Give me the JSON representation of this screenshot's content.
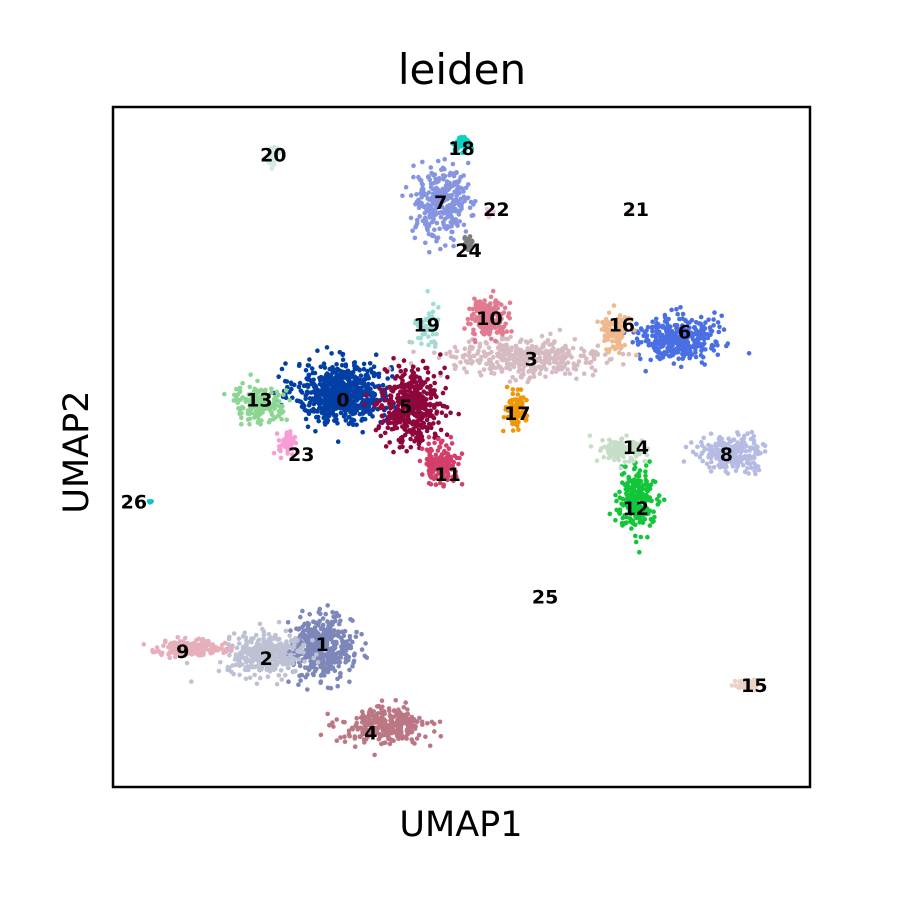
{
  "chart_data": {
    "type": "scatter",
    "title": "leiden",
    "xlabel": "UMAP1",
    "ylabel": "UMAP2",
    "xlim": [
      0,
      100
    ],
    "ylim": [
      0,
      100
    ],
    "grid": false,
    "ticks": false,
    "legend": "on data",
    "clusters": [
      {
        "name": "0",
        "color": "#023fa5",
        "center": [
          33,
          58
        ],
        "spread": [
          6.2,
          4.0
        ],
        "n": 700,
        "label_at": [
          33,
          57
        ]
      },
      {
        "name": "1",
        "color": "#7d87b9",
        "center": [
          30,
          20.5
        ],
        "spread": [
          4.0,
          4.0
        ],
        "n": 460,
        "label_at": [
          30,
          21
        ]
      },
      {
        "name": "2",
        "color": "#bec1d4",
        "center": [
          22,
          19.5
        ],
        "spread": [
          5.0,
          2.6
        ],
        "n": 360,
        "label_at": [
          22,
          19
        ]
      },
      {
        "name": "3",
        "color": "#d6bcc0",
        "center": [
          59,
          63
        ],
        "spread": [
          11.0,
          2.8
        ],
        "n": 380,
        "label_at": [
          60,
          63
        ]
      },
      {
        "name": "4",
        "color": "#bb7784",
        "center": [
          39,
          9
        ],
        "spread": [
          5.5,
          2.4
        ],
        "n": 300,
        "label_at": [
          37,
          8
        ]
      },
      {
        "name": "5",
        "color": "#8e063b",
        "center": [
          43,
          56
        ],
        "spread": [
          3.8,
          5.0
        ],
        "n": 420,
        "label_at": [
          42,
          56
        ]
      },
      {
        "name": "6",
        "color": "#4a6fe3",
        "center": [
          81,
          66
        ],
        "spread": [
          5.0,
          3.0
        ],
        "n": 360,
        "label_at": [
          82,
          67
        ]
      },
      {
        "name": "7",
        "color": "#8595e1",
        "center": [
          47,
          86
        ],
        "spread": [
          3.6,
          4.8
        ],
        "n": 300,
        "label_at": [
          47,
          86
        ]
      },
      {
        "name": "8",
        "color": "#b5bbe3",
        "center": [
          89,
          49
        ],
        "spread": [
          4.4,
          2.2
        ],
        "n": 240,
        "label_at": [
          88,
          49
        ]
      },
      {
        "name": "9",
        "color": "#e6afb9",
        "center": [
          11,
          20.5
        ],
        "spread": [
          4.2,
          1.0
        ],
        "n": 200,
        "label_at": [
          10,
          20
        ]
      },
      {
        "name": "10",
        "color": "#e07b91",
        "center": [
          54,
          69
        ],
        "spread": [
          2.4,
          2.4
        ],
        "n": 200,
        "label_at": [
          54,
          69
        ]
      },
      {
        "name": "11",
        "color": "#d33f6a",
        "center": [
          47,
          47.5
        ],
        "spread": [
          2.4,
          2.6
        ],
        "n": 170,
        "label_at": [
          48,
          46
        ]
      },
      {
        "name": "12",
        "color": "#11c638",
        "center": [
          75,
          42
        ],
        "spread": [
          2.4,
          4.0
        ],
        "n": 220,
        "label_at": [
          75,
          41
        ]
      },
      {
        "name": "13",
        "color": "#8dd593",
        "center": [
          21,
          56.5
        ],
        "spread": [
          3.4,
          2.4
        ],
        "n": 180,
        "label_at": [
          21,
          57
        ]
      },
      {
        "name": "14",
        "color": "#c6dec7",
        "center": [
          73,
          49.5
        ],
        "spread": [
          2.8,
          1.6
        ],
        "n": 120,
        "label_at": [
          75,
          50
        ]
      },
      {
        "name": "15",
        "color": "#ead3c6",
        "center": [
          91,
          15
        ],
        "spread": [
          1.6,
          0.7
        ],
        "n": 60,
        "label_at": [
          92,
          15
        ]
      },
      {
        "name": "16",
        "color": "#f0b98d",
        "center": [
          72,
          67
        ],
        "spread": [
          1.8,
          2.4
        ],
        "n": 110,
        "label_at": [
          73,
          68
        ]
      },
      {
        "name": "17",
        "color": "#ef9708",
        "center": [
          58,
          55.5
        ],
        "spread": [
          1.4,
          2.4
        ],
        "n": 90,
        "label_at": [
          58,
          55
        ]
      },
      {
        "name": "18",
        "color": "#0fcfc0",
        "center": [
          50,
          94.5
        ],
        "spread": [
          1.2,
          1.2
        ],
        "n": 45,
        "label_at": [
          50,
          94
        ]
      },
      {
        "name": "19",
        "color": "#9cded6",
        "center": [
          45,
          68
        ],
        "spread": [
          1.6,
          3.0
        ],
        "n": 50,
        "label_at": [
          45,
          68
        ]
      },
      {
        "name": "20",
        "color": "#d5eae7",
        "center": [
          23,
          92.5
        ],
        "spread": [
          0.7,
          1.4
        ],
        "n": 30,
        "label_at": [
          23,
          93
        ]
      },
      {
        "name": "21",
        "color": "#f3e1eb",
        "center": [
          74,
          84.5
        ],
        "spread": [
          0.3,
          0.4
        ],
        "n": 6,
        "label_at": [
          75,
          85
        ]
      },
      {
        "name": "22",
        "color": "#f6c4e1",
        "center": [
          54,
          84.5
        ],
        "spread": [
          0.5,
          0.6
        ],
        "n": 10,
        "label_at": [
          55,
          85
        ]
      },
      {
        "name": "23",
        "color": "#f79cd4",
        "center": [
          25,
          50.5
        ],
        "spread": [
          1.3,
          1.5
        ],
        "n": 45,
        "label_at": [
          27,
          49
        ]
      },
      {
        "name": "24",
        "color": "#7f7f7f",
        "center": [
          51,
          80
        ],
        "spread": [
          0.6,
          1.2
        ],
        "n": 25,
        "label_at": [
          51,
          79
        ]
      },
      {
        "name": "25",
        "color": "#ffffff",
        "center": [
          62,
          28
        ],
        "spread": [
          0.1,
          0.1
        ],
        "n": 0,
        "label_at": [
          62,
          28
        ]
      },
      {
        "name": "26",
        "color": "#17becf",
        "center": [
          5.5,
          42
        ],
        "spread": [
          0.3,
          0.3
        ],
        "n": 5,
        "label_at": [
          3,
          42
        ]
      }
    ]
  }
}
